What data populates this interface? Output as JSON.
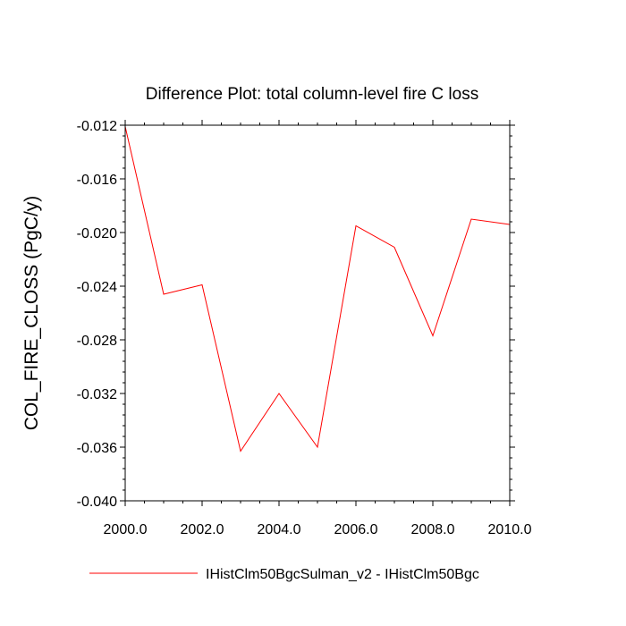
{
  "chart_data": {
    "type": "line",
    "title": "Difference Plot: total column-level fire C loss",
    "xlabel": "",
    "ylabel": "COL_FIRE_CLOSS  (PgC/y)",
    "xlim": [
      2000,
      2010
    ],
    "ylim": [
      -0.04,
      -0.012
    ],
    "xticks": [
      2000,
      2002,
      2004,
      2006,
      2008,
      2010
    ],
    "xtick_labels": [
      "2000.0",
      "2002.0",
      "2004.0",
      "2006.0",
      "2008.0",
      "2010.0"
    ],
    "yticks": [
      -0.012,
      -0.016,
      -0.02,
      -0.024,
      -0.028,
      -0.032,
      -0.036,
      -0.04
    ],
    "ytick_labels": [
      "-0.012",
      "-0.016",
      "-0.020",
      "-0.024",
      "-0.028",
      "-0.032",
      "-0.036",
      "-0.040"
    ],
    "grid": false,
    "legend_position": "bottom",
    "series": [
      {
        "name": "IHistClm50BgcSulman_v2 - IHistClm50Bgc",
        "color": "#ff0000",
        "x": [
          2000,
          2001,
          2002,
          2003,
          2004,
          2005,
          2006,
          2007,
          2008,
          2009,
          2010
        ],
        "values": [
          -0.0121,
          -0.0246,
          -0.0239,
          -0.0363,
          -0.032,
          -0.036,
          -0.0195,
          -0.0211,
          -0.0277,
          -0.019,
          -0.0194
        ]
      }
    ]
  }
}
